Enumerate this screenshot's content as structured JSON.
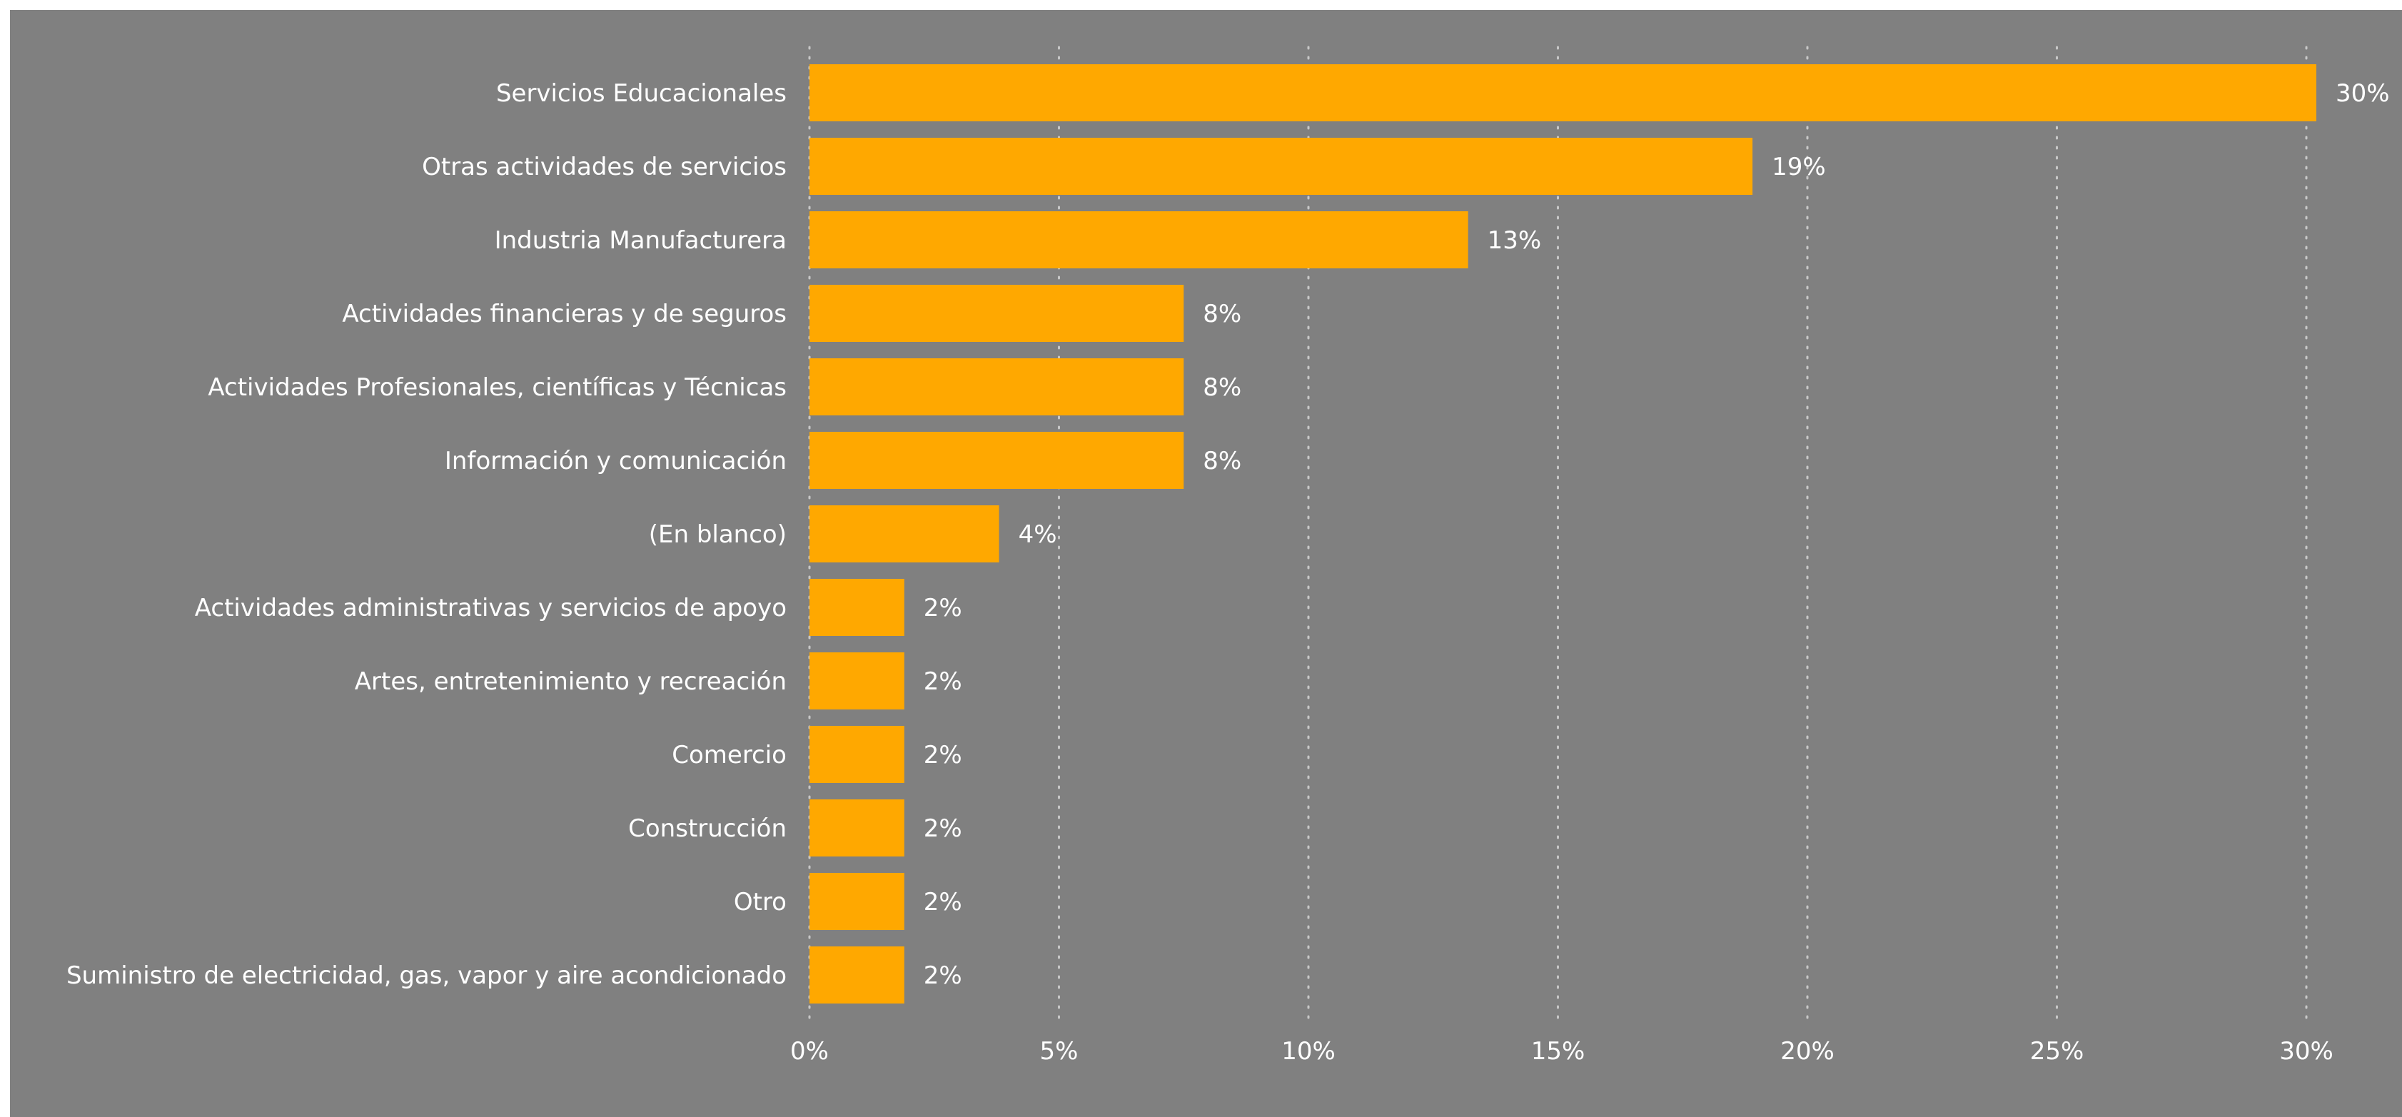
{
  "chart_data": {
    "type": "bar",
    "orientation": "horizontal",
    "categories": [
      "Servicios Educacionales",
      "Otras actividades de servicios",
      "Industria Manufacturera",
      "Actividades financieras y de seguros",
      "Actividades Profesionales, científicas y Técnicas",
      "Información y comunicación",
      "(En blanco)",
      "Actividades administrativas y servicios de apoyo",
      "Artes, entretenimiento y recreación",
      "Comercio",
      "Construcción",
      "Otro",
      "Suministro de electricidad, gas, vapor y aire acondicionado"
    ],
    "values": [
      30.2,
      18.9,
      13.2,
      7.5,
      7.5,
      7.5,
      3.8,
      1.9,
      1.9,
      1.9,
      1.9,
      1.9,
      1.9
    ],
    "data_labels": [
      "30%",
      "19%",
      "13%",
      "8%",
      "8%",
      "8%",
      "4%",
      "2%",
      "2%",
      "2%",
      "2%",
      "2%",
      "2%"
    ],
    "x_ticks": [
      0,
      5,
      10,
      15,
      20,
      25,
      30
    ],
    "x_tick_labels": [
      "0%",
      "5%",
      "10%",
      "15%",
      "20%",
      "25%",
      "30%"
    ],
    "xlim": [
      0,
      30.5
    ],
    "grid": "vertical dotted",
    "bar_color": "#FFA800",
    "background_color": "#808080",
    "text_color": "#FFFFFF"
  }
}
